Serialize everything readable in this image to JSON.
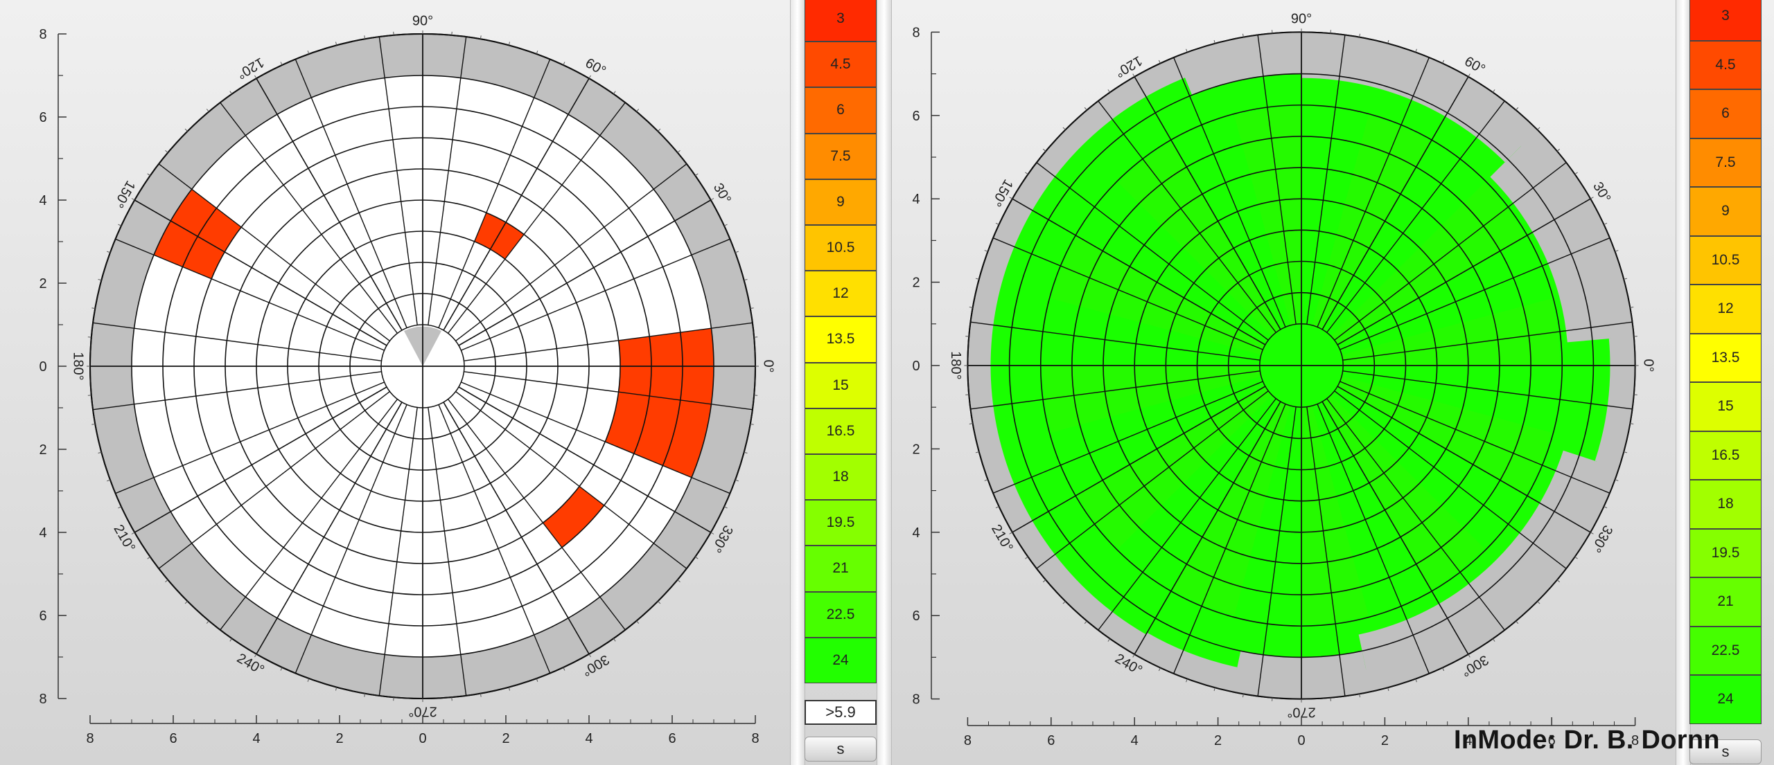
{
  "charts": [
    {
      "id": "left",
      "angle_labels": [
        "0°",
        "30°",
        "60°",
        "90°",
        "120°",
        "150°",
        "180°",
        "210°",
        "240°",
        "270°",
        "300°",
        "330°"
      ],
      "y_ticks": [
        "8",
        "6",
        "4",
        "2",
        "0",
        "2",
        "4",
        "6",
        "8"
      ],
      "x_ticks": [
        "8",
        "6",
        "4",
        "2",
        "0",
        "2",
        "4",
        "6",
        "8"
      ],
      "colors": {
        "gray": "#c0c0c0",
        "white": "#ffffff",
        "red": "#ff3c00",
        "grid": "#111111"
      },
      "center_wedge": true,
      "red_cells": [
        {
          "ring": 6,
          "sector": 0
        },
        {
          "ring": 7,
          "sector": 0
        },
        {
          "ring": 8,
          "sector": 0
        },
        {
          "ring": 6,
          "sector": 23
        },
        {
          "ring": 7,
          "sector": 23
        },
        {
          "ring": 8,
          "sector": 23
        },
        {
          "ring": 7,
          "sector": 10
        },
        {
          "ring": 8,
          "sector": 10
        },
        {
          "ring": 4,
          "sector": 4
        },
        {
          "ring": 6,
          "sector": 21
        }
      ]
    },
    {
      "id": "right",
      "angle_labels": [
        "0°",
        "30°",
        "60°",
        "90°",
        "120°",
        "150°",
        "180°",
        "210°",
        "240°",
        "270°",
        "300°",
        "330°"
      ],
      "y_ticks": [
        "8",
        "6",
        "4",
        "2",
        "0",
        "2",
        "4",
        "6",
        "8"
      ],
      "x_ticks": [
        "8",
        "6",
        "4",
        "2",
        "0",
        "2",
        "4",
        "6",
        "8"
      ],
      "colors": {
        "gray": "#c0c0c0",
        "fill": "#1aff00",
        "fill_alt": "#3cf000",
        "grid": "#111111"
      }
    }
  ],
  "legend": {
    "values": [
      "3",
      "4.5",
      "6",
      "7.5",
      "9",
      "10.5",
      "12",
      "13.5",
      "15",
      "16.5",
      "18",
      "19.5",
      "21",
      "22.5",
      "24"
    ],
    "colors": [
      "#ff2a00",
      "#ff4a00",
      "#ff6a00",
      "#ff8c00",
      "#ffa800",
      "#ffc400",
      "#ffe000",
      "#ffff00",
      "#ddff00",
      "#bfff00",
      "#a2ff00",
      "#85ff00",
      "#66ff00",
      "#45ff00",
      "#22ff00"
    ]
  },
  "threshold_label": ">5.9",
  "unit_button_label": "s",
  "watermark": "InMode: Dr. B. Dornn"
}
